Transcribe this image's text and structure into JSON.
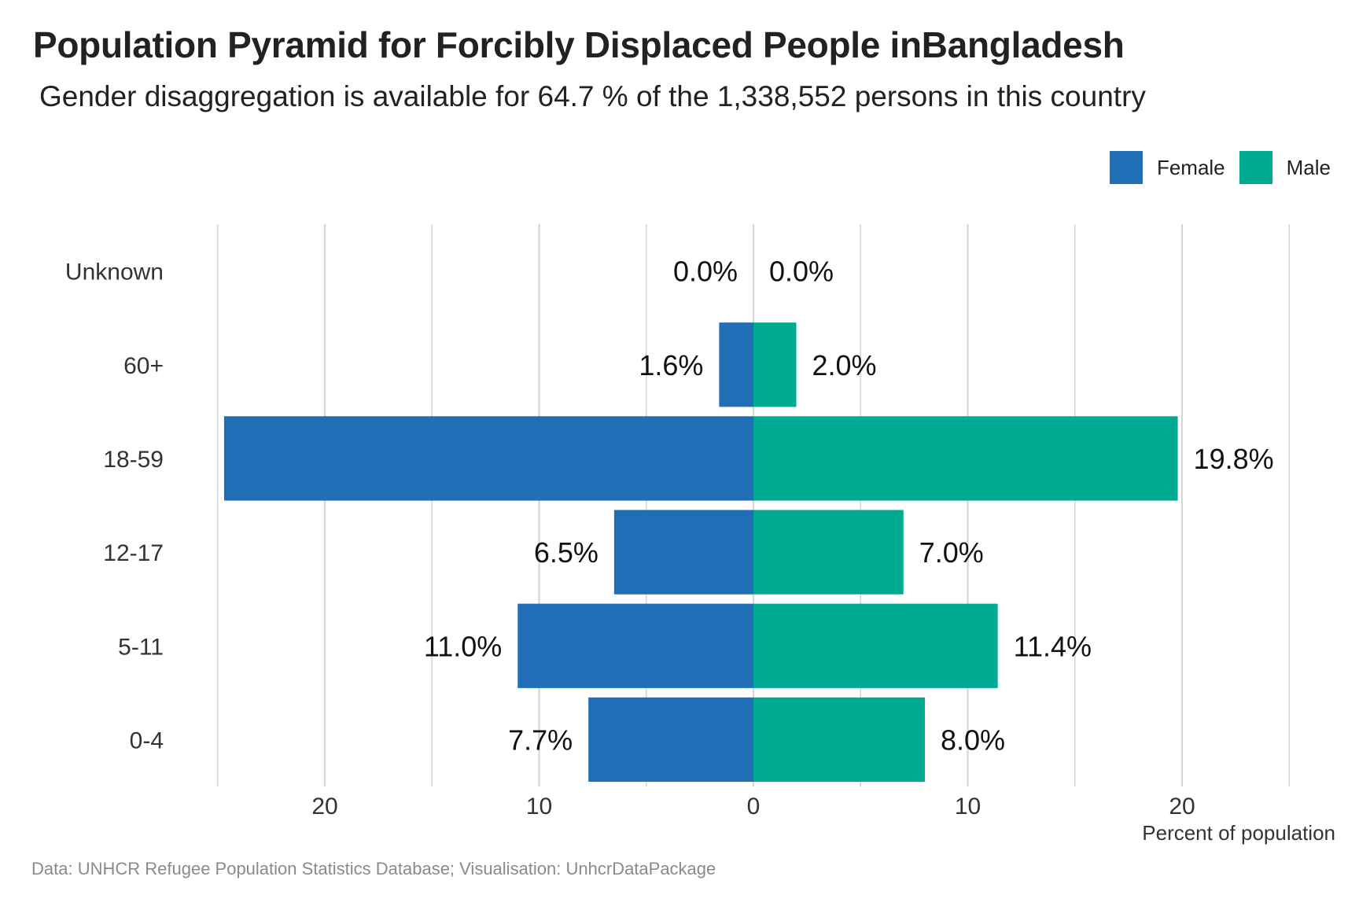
{
  "header": {
    "title": "Population Pyramid for Forcibly Displaced People inBangladesh",
    "subtitle": "Gender disaggregation is available for 64.7 % of the 1,338,552 persons in this country"
  },
  "legend": {
    "position": "top-right",
    "items": [
      {
        "label": "Female",
        "color": "#1f6eb6"
      },
      {
        "label": "Male",
        "color": "#00aa92"
      }
    ]
  },
  "caption": "Data: UNHCR Refugee Population Statistics Database; Visualisation: UnhcrDataPackage",
  "chart_data": {
    "type": "bar",
    "orientation": "horizontal",
    "subtype": "population-pyramid",
    "title": "Population Pyramid for Forcibly Displaced People inBangladesh",
    "subtitle": "Gender disaggregation is available for 64.7 % of the 1,338,552 persons in this country",
    "xlabel": "Percent of population",
    "ylabel": "",
    "categories": [
      "Unknown",
      "60+",
      "18-59",
      "12-17",
      "5-11",
      "0-4"
    ],
    "xlim": [
      -25,
      25
    ],
    "x_ticks": [
      -20,
      -10,
      0,
      10,
      20
    ],
    "x_tick_labels": [
      "20",
      "10",
      "0",
      "10",
      "20"
    ],
    "grid": true,
    "series": [
      {
        "name": "Female",
        "color": "#1f6eb6",
        "side": "left",
        "values": [
          0.0,
          1.6,
          24.7,
          6.5,
          11.0,
          7.7
        ],
        "labels": [
          "0.0%",
          "1.6%",
          "",
          "6.5%",
          "11.0%",
          "7.7%"
        ]
      },
      {
        "name": "Male",
        "color": "#00aa92",
        "side": "right",
        "values": [
          0.0,
          2.0,
          19.8,
          7.0,
          11.4,
          8.0
        ],
        "labels": [
          "0.0%",
          "2.0%",
          "19.8%",
          "7.0%",
          "11.4%",
          "8.0%"
        ]
      }
    ]
  }
}
